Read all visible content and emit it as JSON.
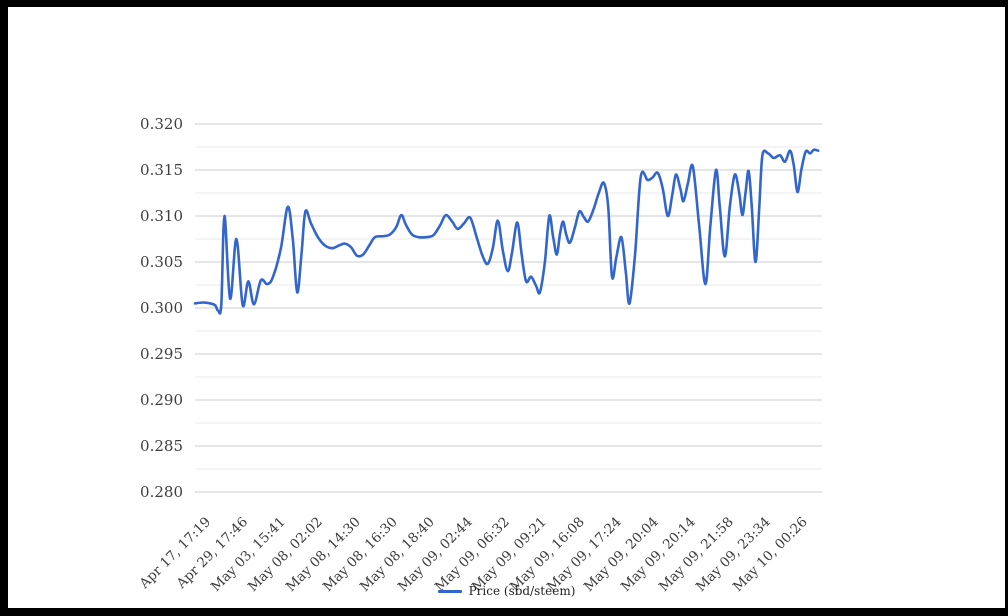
{
  "window": {
    "background": "#ffffff",
    "frame_color": "#000000"
  },
  "chart_data": {
    "type": "line",
    "title": "",
    "xlabel": "",
    "ylabel": "",
    "ylim": [
      0.28,
      0.32
    ],
    "y_tick_step": 0.005,
    "y_tick_labels": [
      "0.280",
      "0.285",
      "0.290",
      "0.295",
      "0.300",
      "0.305",
      "0.310",
      "0.315",
      "0.320"
    ],
    "x_tick_labels": [
      "Apr 17, 17:19",
      "Apr 29, 17:46",
      "May 03, 15:41",
      "May 08, 02:02",
      "May 08, 14:30",
      "May 08, 16:30",
      "May 08, 18:40",
      "May 09, 02:44",
      "May 09, 06:32",
      "May 09, 09:21",
      "May 09, 16:08",
      "May 09, 17:24",
      "May 09, 20:04",
      "May 09, 20:14",
      "May 09, 21:58",
      "May 09, 23:34",
      "May 10, 00:26"
    ],
    "grid": {
      "major_color": "#cccccc",
      "minor_color": "#e9e9e9",
      "minor_step": 0.0025,
      "grid_on": true
    },
    "legend": {
      "position": "bottom"
    },
    "series": [
      {
        "name": "Price (sbd/steem)",
        "color": "#3366cc",
        "points": [
          [
            0.0,
            0.3005
          ],
          [
            0.013,
            0.3006
          ],
          [
            0.024,
            0.3005
          ],
          [
            0.032,
            0.3003
          ],
          [
            0.037,
            0.2997
          ],
          [
            0.042,
            0.3004
          ],
          [
            0.047,
            0.31
          ],
          [
            0.056,
            0.301
          ],
          [
            0.066,
            0.3075
          ],
          [
            0.076,
            0.3003
          ],
          [
            0.085,
            0.3029
          ],
          [
            0.094,
            0.3004
          ],
          [
            0.105,
            0.303
          ],
          [
            0.115,
            0.3026
          ],
          [
            0.124,
            0.3033
          ],
          [
            0.137,
            0.3065
          ],
          [
            0.148,
            0.311
          ],
          [
            0.156,
            0.3075
          ],
          [
            0.163,
            0.3017
          ],
          [
            0.17,
            0.306
          ],
          [
            0.176,
            0.3105
          ],
          [
            0.185,
            0.3092
          ],
          [
            0.196,
            0.3077
          ],
          [
            0.207,
            0.3068
          ],
          [
            0.219,
            0.3065
          ],
          [
            0.23,
            0.3068
          ],
          [
            0.239,
            0.307
          ],
          [
            0.249,
            0.3066
          ],
          [
            0.258,
            0.3057
          ],
          [
            0.268,
            0.3058
          ],
          [
            0.278,
            0.3068
          ],
          [
            0.287,
            0.3077
          ],
          [
            0.3,
            0.3078
          ],
          [
            0.311,
            0.308
          ],
          [
            0.321,
            0.3088
          ],
          [
            0.329,
            0.3101
          ],
          [
            0.336,
            0.3091
          ],
          [
            0.346,
            0.308
          ],
          [
            0.357,
            0.3077
          ],
          [
            0.368,
            0.3077
          ],
          [
            0.38,
            0.3079
          ],
          [
            0.391,
            0.309
          ],
          [
            0.4,
            0.3101
          ],
          [
            0.41,
            0.3094
          ],
          [
            0.419,
            0.3086
          ],
          [
            0.429,
            0.3092
          ],
          [
            0.439,
            0.3098
          ],
          [
            0.45,
            0.3075
          ],
          [
            0.459,
            0.3056
          ],
          [
            0.467,
            0.3048
          ],
          [
            0.475,
            0.3065
          ],
          [
            0.483,
            0.3095
          ],
          [
            0.491,
            0.3062
          ],
          [
            0.499,
            0.304
          ],
          [
            0.506,
            0.3062
          ],
          [
            0.514,
            0.3093
          ],
          [
            0.521,
            0.3058
          ],
          [
            0.528,
            0.3029
          ],
          [
            0.536,
            0.3034
          ],
          [
            0.544,
            0.3024
          ],
          [
            0.55,
            0.3017
          ],
          [
            0.558,
            0.305
          ],
          [
            0.565,
            0.31
          ],
          [
            0.571,
            0.3078
          ],
          [
            0.577,
            0.3058
          ],
          [
            0.582,
            0.308
          ],
          [
            0.587,
            0.3094
          ],
          [
            0.592,
            0.308
          ],
          [
            0.598,
            0.3071
          ],
          [
            0.606,
            0.3088
          ],
          [
            0.613,
            0.3105
          ],
          [
            0.62,
            0.3099
          ],
          [
            0.627,
            0.3094
          ],
          [
            0.636,
            0.3108
          ],
          [
            0.644,
            0.3125
          ],
          [
            0.652,
            0.3136
          ],
          [
            0.659,
            0.311
          ],
          [
            0.665,
            0.3034
          ],
          [
            0.672,
            0.3055
          ],
          [
            0.68,
            0.3077
          ],
          [
            0.687,
            0.304
          ],
          [
            0.693,
            0.3005
          ],
          [
            0.702,
            0.306
          ],
          [
            0.711,
            0.3143
          ],
          [
            0.722,
            0.3139
          ],
          [
            0.73,
            0.3142
          ],
          [
            0.738,
            0.3147
          ],
          [
            0.746,
            0.313
          ],
          [
            0.754,
            0.31
          ],
          [
            0.761,
            0.3122
          ],
          [
            0.767,
            0.3145
          ],
          [
            0.774,
            0.313
          ],
          [
            0.779,
            0.3116
          ],
          [
            0.786,
            0.3135
          ],
          [
            0.794,
            0.3154
          ],
          [
            0.804,
            0.309
          ],
          [
            0.814,
            0.3026
          ],
          [
            0.822,
            0.309
          ],
          [
            0.831,
            0.315
          ],
          [
            0.837,
            0.311
          ],
          [
            0.845,
            0.3056
          ],
          [
            0.853,
            0.311
          ],
          [
            0.861,
            0.3145
          ],
          [
            0.868,
            0.3125
          ],
          [
            0.873,
            0.3101
          ],
          [
            0.878,
            0.3125
          ],
          [
            0.883,
            0.3149
          ],
          [
            0.888,
            0.311
          ],
          [
            0.894,
            0.305
          ],
          [
            0.9,
            0.311
          ],
          [
            0.905,
            0.3166
          ],
          [
            0.914,
            0.3168
          ],
          [
            0.923,
            0.3163
          ],
          [
            0.933,
            0.3166
          ],
          [
            0.941,
            0.3159
          ],
          [
            0.949,
            0.3171
          ],
          [
            0.955,
            0.3155
          ],
          [
            0.961,
            0.3126
          ],
          [
            0.967,
            0.315
          ],
          [
            0.974,
            0.317
          ],
          [
            0.981,
            0.3168
          ],
          [
            0.987,
            0.3172
          ],
          [
            0.994,
            0.3171
          ]
        ]
      }
    ]
  }
}
